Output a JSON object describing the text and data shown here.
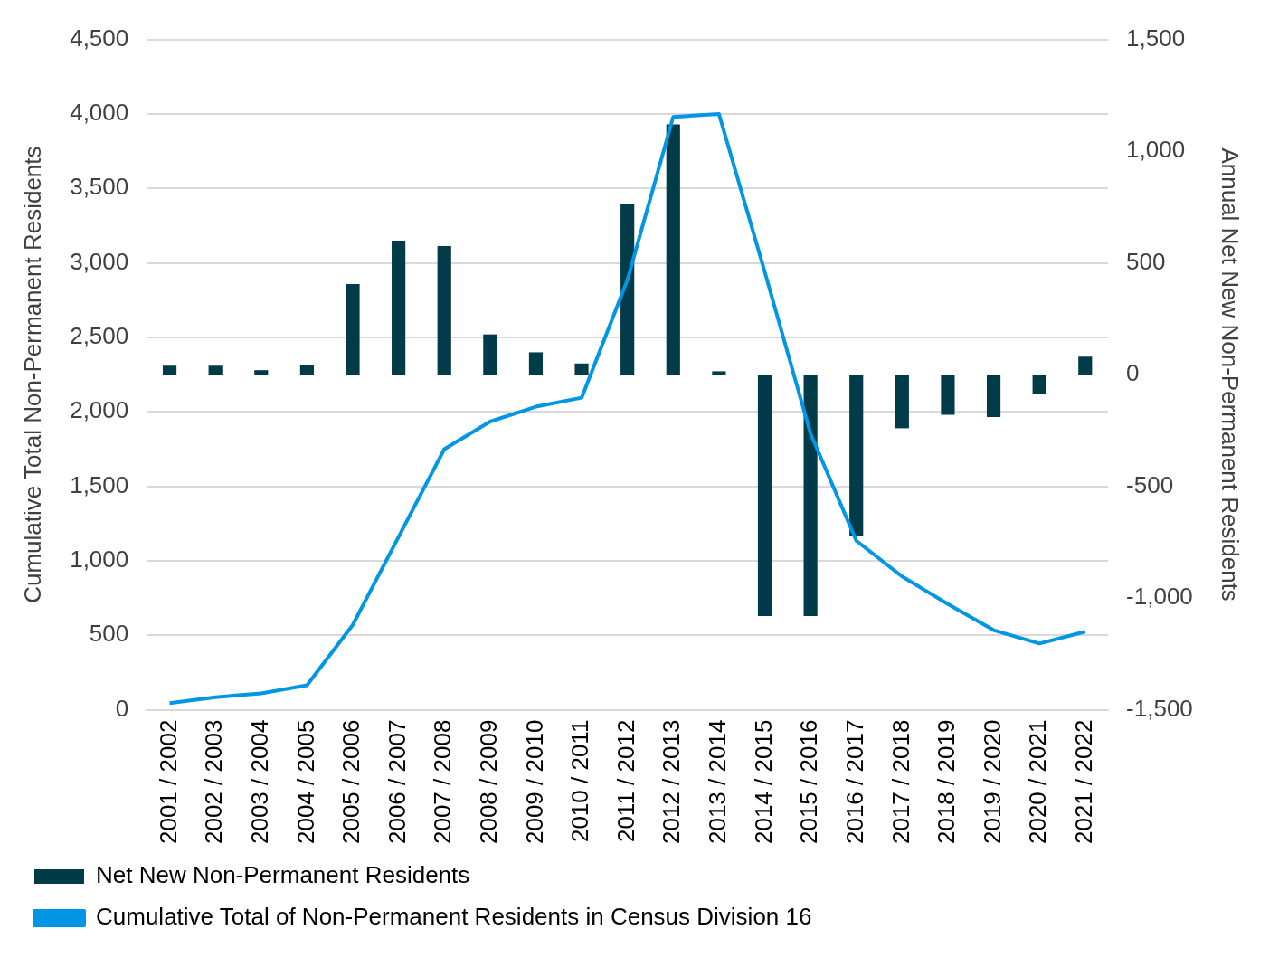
{
  "chart_data": {
    "type": "bar",
    "ylabel": "Cumulative Total Non-Permanent Residents",
    "y2label": "Annual Net New Non-Permanent Residents",
    "categories": [
      "2001 / 2002",
      "2002 / 2003",
      "2003 / 2004",
      "2004 / 2005",
      "2005 / 2006",
      "2006 / 2007",
      "2007 / 2008",
      "2008 / 2009",
      "2009 / 2010",
      "2010 / 2011",
      "2011 / 2012",
      "2012 / 2013",
      "2013 / 2014",
      "2014 / 2015",
      "2015 / 2016",
      "2016 / 2017",
      "2017 / 2018",
      "2018 / 2019",
      "2019 / 2020",
      "2020 / 2021",
      "2021 / 2022"
    ],
    "series": [
      {
        "name": "Net New Non-Permanent Residents",
        "axis": "y2",
        "color": "#003b49",
        "values": [
          40,
          40,
          20,
          45,
          405,
          600,
          575,
          180,
          100,
          50,
          765,
          1120,
          15,
          -1080,
          -1080,
          -720,
          -240,
          -180,
          -190,
          -85,
          80
        ]
      },
      {
        "name": "Cumulative Total of Non-Permanent Residents in Census Division 16",
        "type": "line",
        "axis": "y",
        "color": "#0096e6",
        "values": [
          45,
          85,
          110,
          165,
          570,
          1160,
          1750,
          1935,
          2035,
          2095,
          2885,
          3980,
          4000,
          2940,
          1855,
          1135,
          895,
          710,
          535,
          445,
          525
        ]
      }
    ],
    "ylim": [
      0,
      4500
    ],
    "yticks": [
      0,
      {
        "value": 500,
        "label": "500"
      },
      {
        "value": 1000,
        "label": "1,000"
      },
      {
        "value": 1500,
        "label": "1,500"
      },
      {
        "value": 2000,
        "label": "2,000"
      },
      {
        "value": 2500,
        "label": "2,500"
      },
      {
        "value": 3000,
        "label": "3,000"
      },
      {
        "value": 3500,
        "label": "3,500"
      },
      {
        "value": 4000,
        "label": "4,000"
      },
      {
        "value": 4500,
        "label": "4,500"
      }
    ],
    "y2lim": [
      -1500,
      1500
    ],
    "y2ticks": [
      {
        "value": -1500,
        "label": "-1,500"
      },
      {
        "value": -1000,
        "label": "-1,000"
      },
      -500,
      0,
      500,
      {
        "value": 1000,
        "label": "1,000"
      },
      {
        "value": 1500,
        "label": "1,500"
      }
    ],
    "grid": "y",
    "legend": "bottom",
    "marker": "none",
    "line_style": "solid"
  }
}
